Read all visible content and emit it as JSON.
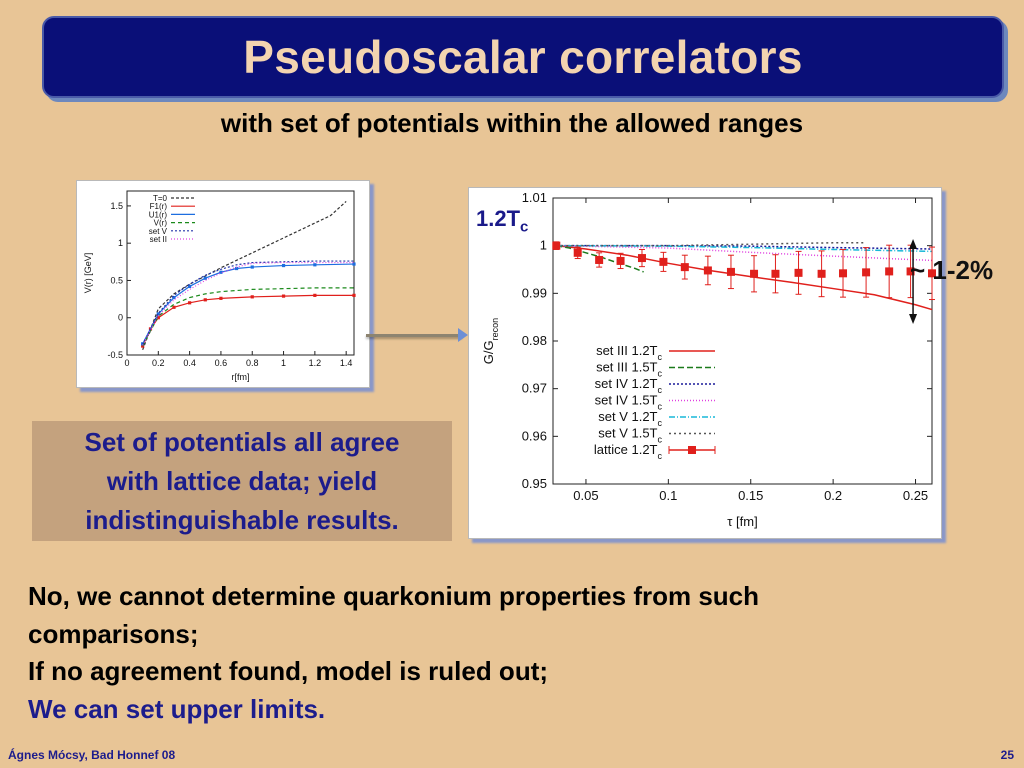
{
  "slide": {
    "title": "Pseudoscalar correlators",
    "subtitle": "with set of potentials within the allowed ranges",
    "note_lines": [
      "Set of potentials all agree",
      "with lattice data; yield",
      "indistinguishable results."
    ],
    "label_tc_main": "1.2T",
    "label_tc_sub": "c",
    "label_pct": "~ 1-2%",
    "bullets": [
      {
        "text": "No, we cannot determine quarkonium properties from such",
        "color": "black"
      },
      {
        "text": "comparisons;",
        "color": "black"
      },
      {
        "text": "If no agreement found, model is ruled out;",
        "color": "black"
      },
      {
        "text": "We can set upper limits.",
        "color": "blue"
      }
    ],
    "footer_left": "Ágnes Mócsy, Bad Honnef 08",
    "footer_right": "25"
  },
  "chart_data": [
    {
      "type": "line",
      "xlabel": "r[fm]",
      "ylabel": "V(r) [GeV]",
      "xlim": [
        0,
        1.45
      ],
      "ylim": [
        -0.5,
        1.7
      ],
      "xticks": [
        "0",
        "0.2",
        "0.4",
        "0.6",
        "0.8",
        "1",
        "1.2",
        "1.4"
      ],
      "yticks": [
        "-0.5",
        "0",
        "0.5",
        "1",
        "1.5"
      ],
      "legend": "top-left",
      "series": [
        {
          "name": "T=0",
          "color": "#333333",
          "x": [
            0.1,
            0.2,
            0.3,
            0.4,
            0.5,
            0.6,
            0.7,
            0.8,
            0.9,
            1.0,
            1.1,
            1.2,
            1.3,
            1.4
          ],
          "y": [
            -0.43,
            0.12,
            0.32,
            0.45,
            0.56,
            0.67,
            0.77,
            0.87,
            0.97,
            1.07,
            1.17,
            1.27,
            1.37,
            1.56
          ]
        },
        {
          "name": "F1(r)",
          "color": "#e0201c",
          "x": [
            0.1,
            0.15,
            0.2,
            0.3,
            0.4,
            0.5,
            0.6,
            0.8,
            1.0,
            1.2,
            1.45
          ],
          "y": [
            -0.38,
            -0.15,
            0.0,
            0.14,
            0.2,
            0.24,
            0.26,
            0.28,
            0.29,
            0.3,
            0.3
          ]
        },
        {
          "name": "U1(r)",
          "color": "#1d6ee0",
          "x": [
            0.1,
            0.2,
            0.3,
            0.4,
            0.5,
            0.6,
            0.7,
            0.8,
            1.0,
            1.2,
            1.45
          ],
          "y": [
            -0.35,
            0.05,
            0.27,
            0.42,
            0.53,
            0.61,
            0.66,
            0.68,
            0.7,
            0.71,
            0.72
          ]
        },
        {
          "name": "V(r)",
          "color": "#1b8a1b",
          "x": [
            0.1,
            0.2,
            0.3,
            0.4,
            0.5,
            0.6,
            0.8,
            1.0,
            1.2,
            1.45
          ],
          "y": [
            -0.38,
            0.02,
            0.18,
            0.27,
            0.32,
            0.35,
            0.38,
            0.39,
            0.4,
            0.4
          ]
        },
        {
          "name": "set V",
          "color": "#2233aa",
          "x": [
            0.1,
            0.2,
            0.3,
            0.4,
            0.5,
            0.6,
            0.7,
            0.8,
            1.0,
            1.2,
            1.45
          ],
          "y": [
            -0.36,
            0.06,
            0.3,
            0.45,
            0.57,
            0.65,
            0.71,
            0.74,
            0.75,
            0.76,
            0.76
          ]
        },
        {
          "name": "set II",
          "color": "#e040e0",
          "x": [
            0.1,
            0.2,
            0.3,
            0.4,
            0.5,
            0.6,
            0.7,
            0.8,
            1.0,
            1.2,
            1.45
          ],
          "y": [
            -0.37,
            0.03,
            0.24,
            0.38,
            0.5,
            0.6,
            0.68,
            0.73,
            0.74,
            0.74,
            0.74
          ]
        }
      ]
    },
    {
      "type": "line",
      "xlabel": "τ [fm]",
      "ylabel": "G/G",
      "ylabel_sub": "recon",
      "xlim": [
        0.03,
        0.26
      ],
      "ylim": [
        0.95,
        1.01
      ],
      "xticks": [
        0.05,
        0.1,
        0.15,
        0.2,
        0.25
      ],
      "yticks": [
        0.95,
        0.96,
        0.97,
        0.98,
        0.99,
        1,
        1.01
      ],
      "legend": "bottom-center",
      "series": [
        {
          "name": "set III 1.2T",
          "sub": "c",
          "color": "#e0201c",
          "dash": "",
          "x": [
            0.032,
            0.05,
            0.075,
            0.1,
            0.125,
            0.15,
            0.175,
            0.2,
            0.225,
            0.25,
            0.26
          ],
          "y": [
            1.0,
            0.9993,
            0.998,
            0.9963,
            0.9948,
            0.9935,
            0.9923,
            0.991,
            0.9897,
            0.9876,
            0.9866
          ]
        },
        {
          "name": "set III 1.5T",
          "sub": "c",
          "color": "#1b7a1b",
          "dash": "6,3",
          "x": [
            0.032,
            0.04,
            0.05,
            0.06,
            0.07,
            0.08,
            0.085
          ],
          "y": [
            1.0,
            0.9995,
            0.9985,
            0.9975,
            0.9963,
            0.9952,
            0.9945
          ]
        },
        {
          "name": "set IV 1.2T",
          "sub": "c",
          "color": "#1a1a9a",
          "dash": "2,2",
          "x": [
            0.032,
            0.1,
            0.15,
            0.2,
            0.26
          ],
          "y": [
            1.0,
            1.0,
            0.9999,
            0.9996,
            0.9993
          ]
        },
        {
          "name": "set IV 1.5T",
          "sub": "c",
          "color": "#e040e0",
          "dash": "1,2",
          "x": [
            0.032,
            0.1,
            0.15,
            0.2,
            0.26
          ],
          "y": [
            1.0,
            0.9995,
            0.9986,
            0.9978,
            0.9969
          ]
        },
        {
          "name": "set V 1.2T",
          "sub": "c",
          "color": "#18b8d8",
          "dash": "6,2,1,2",
          "x": [
            0.032,
            0.1,
            0.15,
            0.2,
            0.26
          ],
          "y": [
            1.0,
            0.9999,
            0.9996,
            0.9992,
            0.9988
          ]
        },
        {
          "name": "set V 1.5T",
          "sub": "c",
          "color": "#555555",
          "dash": "2,3",
          "x": [
            0.032,
            0.1,
            0.15,
            0.18,
            0.2,
            0.22
          ],
          "y": [
            1.0,
            1.0,
            1.0003,
            1.0005,
            1.0006,
            1.0006
          ]
        },
        {
          "name": "lattice 1.2T",
          "sub": "c",
          "color": "#e0201c",
          "dash": "",
          "markers": true,
          "x": [
            0.032,
            0.045,
            0.058,
            0.071,
            0.084,
            0.097,
            0.11,
            0.124,
            0.138,
            0.152,
            0.165,
            0.179,
            0.193,
            0.206,
            0.22,
            0.234,
            0.247,
            0.26
          ],
          "y": [
            1.0,
            0.9985,
            0.997,
            0.9968,
            0.9974,
            0.9966,
            0.9955,
            0.9948,
            0.9945,
            0.9941,
            0.9941,
            0.9943,
            0.9941,
            0.9942,
            0.9944,
            0.9946,
            0.9946,
            0.9942
          ],
          "err": [
            0.0008,
            0.0012,
            0.0015,
            0.0016,
            0.0018,
            0.002,
            0.0025,
            0.003,
            0.0035,
            0.0038,
            0.004,
            0.0045,
            0.0048,
            0.005,
            0.0052,
            0.0055,
            0.0055,
            0.0055
          ]
        }
      ]
    }
  ]
}
